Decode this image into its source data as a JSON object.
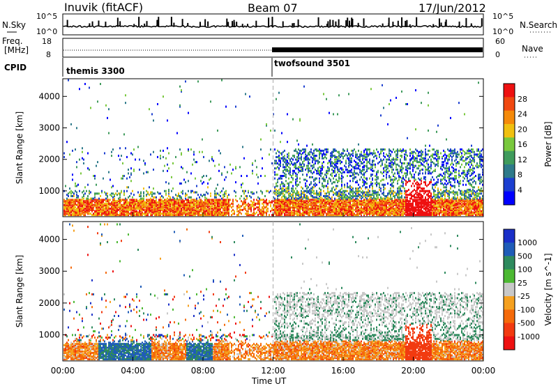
{
  "header": {
    "station": "Inuvik (fitACF)",
    "beam": "Beam 07",
    "date": "17/Jun/2012"
  },
  "strip": {
    "nsky_label": "N.Sky",
    "nsky_top": "10^5",
    "nsky_bottom": "10^0",
    "nsearch_label": "N.Search",
    "nsearch_top": "10^5",
    "nsearch_bottom": "10^0",
    "freq_label_1": "Freq.",
    "freq_label_2": "[MHz]",
    "freq_top": "18",
    "freq_bottom": "8",
    "nave_label": "Nave",
    "nave_top": "60",
    "nave_bottom": "0",
    "cpid_label": "CPID",
    "cpid_1": "themis 3300",
    "cpid_2": "twofsound 3501"
  },
  "colors": {
    "power": [
      "#0000ff",
      "#1c3fd0",
      "#2e7a8a",
      "#3f9b5c",
      "#79c83d",
      "#f0c010",
      "#f58a0a",
      "#f04810",
      "#ee1111"
    ],
    "velocity": [
      "#ee1111",
      "#f23a10",
      "#f56a0a",
      "#f5a01f",
      "#c8c8c8",
      "#4cb832",
      "#2e8a5e",
      "#1f5cb8",
      "#1a2fc8"
    ]
  },
  "chart_data": [
    {
      "type": "heatmap",
      "title": "Power",
      "ylabel": "Slant Range [km]",
      "xlabel": "Time UT",
      "x_ticks": [
        "00:00",
        "04:00",
        "08:00",
        "12:00",
        "16:00",
        "20:00",
        "00:00"
      ],
      "x_range_hours": [
        0,
        24
      ],
      "y_ticks": [
        1000,
        2000,
        3000,
        4000
      ],
      "ylim": [
        180,
        4560
      ],
      "colorbar": {
        "label": "Power [dB]",
        "ticks": [
          4,
          8,
          12,
          16,
          20,
          24,
          28
        ],
        "range": [
          0,
          32
        ]
      }
    },
    {
      "type": "heatmap",
      "ylabel": "Slant Range [km]",
      "xlabel": "Time UT",
      "x_ticks": [
        "00:00",
        "04:00",
        "08:00",
        "12:00",
        "16:00",
        "20:00",
        "00:00"
      ],
      "x_range_hours": [
        0,
        24
      ],
      "y_ticks": [
        1000,
        2000,
        3000,
        4000
      ],
      "ylim": [
        180,
        4560
      ],
      "colorbar": {
        "label": "Velocity [m s^-1]",
        "ticks": [
          -1000,
          -500,
          -100,
          -25,
          25,
          100,
          500,
          1000
        ]
      }
    }
  ],
  "xaxis": {
    "title": "Time UT",
    "ticks": [
      "00:00",
      "04:00",
      "08:00",
      "12:00",
      "16:00",
      "20:00",
      "00:00"
    ]
  }
}
